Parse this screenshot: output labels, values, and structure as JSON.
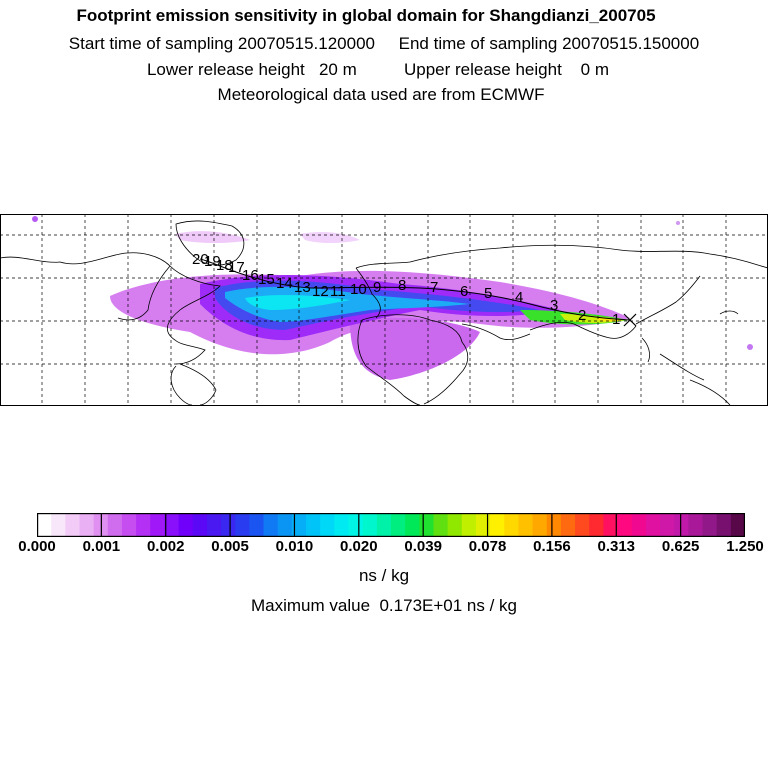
{
  "header": {
    "title": "Footprint emission sensitivity in global domain for Shangdianzi_200705",
    "line2": "Start time of sampling 20070515.120000     End time of sampling 20070515.150000",
    "line3": "Lower release height   20 m          Upper release height    0 m",
    "line4": "Meteorological data used are from ECMWF"
  },
  "map": {
    "station_marker": "x-marker",
    "trajectory_labels": [
      "1",
      "2",
      "3",
      "4",
      "5",
      "6",
      "7",
      "8",
      "9",
      "10",
      "11",
      "12",
      "13",
      "14",
      "15",
      "16",
      "17",
      "18",
      "19",
      "20"
    ]
  },
  "colorbar": {
    "ticks": [
      "0.000",
      "0.001",
      "0.002",
      "0.005",
      "0.010",
      "0.020",
      "0.039",
      "0.078",
      "0.156",
      "0.313",
      "0.625",
      "1.250"
    ],
    "colors": [
      "#ffffff",
      "#f8e6fb",
      "#f2ccf7",
      "#e9b0f4",
      "#df90f0",
      "#d06cee",
      "#c64ef0",
      "#b530f5",
      "#a018f8",
      "#8a10fb",
      "#7000fa",
      "#5a08f5",
      "#4a18f0",
      "#3a28f0",
      "#2a3cf0",
      "#1a55f2",
      "#107af4",
      "#0a95f5",
      "#05aef6",
      "#00c4f7",
      "#00d8f7",
      "#00eaf2",
      "#00f5e6",
      "#00f7ce",
      "#00f2a8",
      "#00ee80",
      "#00e858",
      "#20e030",
      "#60e010",
      "#90e800",
      "#c0f000",
      "#e0f000",
      "#fff000",
      "#ffd800",
      "#ffc000",
      "#ffa800",
      "#ff8800",
      "#ff6a10",
      "#ff4a20",
      "#ff2a30",
      "#ff1060",
      "#ff0880",
      "#f00890",
      "#e010a0",
      "#d018a8",
      "#c018a8",
      "#a81898",
      "#901888",
      "#781070",
      "#580848"
    ],
    "units": "ns / kg",
    "max_value_text": "Maximum value  0.173E+01 ns / kg"
  }
}
